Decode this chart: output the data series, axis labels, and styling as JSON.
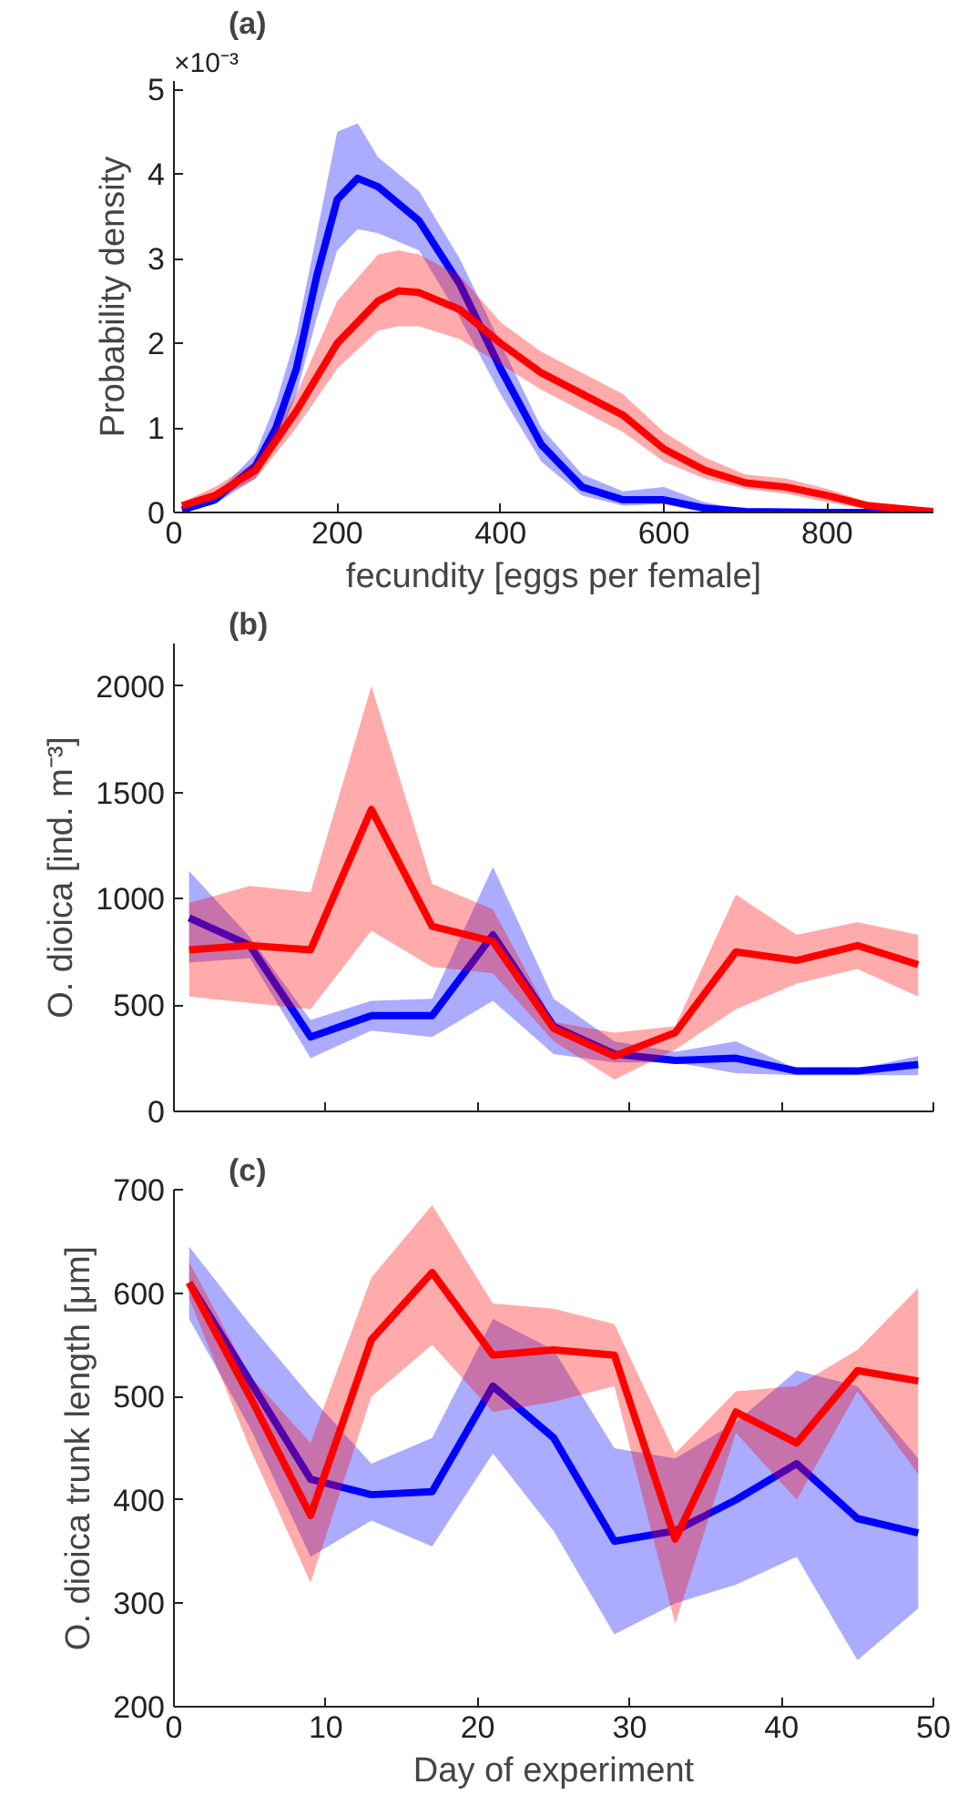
{
  "chart_data": [
    {
      "type": "line",
      "title": "(a)",
      "xlabel": "fecundity [eggs per female]",
      "ylabel": "Probability density",
      "annotations": [
        "×10⁻³"
      ],
      "xlim": [
        0,
        930
      ],
      "ylim": [
        0,
        5.1
      ],
      "xticks": [
        0,
        200,
        400,
        600,
        800
      ],
      "yticks": [
        0,
        1,
        2,
        3,
        4,
        5
      ],
      "grid": false,
      "series": [
        {
          "color": "#0000ff",
          "x": [
            10,
            50,
            100,
            125,
            150,
            175,
            200,
            225,
            250,
            300,
            350,
            400,
            450,
            500,
            550,
            600,
            650,
            700,
            800,
            930
          ],
          "values": [
            0.03,
            0.15,
            0.55,
            1.0,
            1.7,
            2.8,
            3.7,
            3.95,
            3.85,
            3.45,
            2.7,
            1.7,
            0.8,
            0.3,
            0.15,
            0.15,
            0.05,
            0.01,
            0,
            0
          ],
          "lower": [
            0,
            0.1,
            0.4,
            0.8,
            1.4,
            2.3,
            3.1,
            3.35,
            3.3,
            3.1,
            2.3,
            1.4,
            0.6,
            0.2,
            0.08,
            0.1,
            0,
            0,
            0,
            0
          ],
          "upper": [
            0.1,
            0.2,
            0.7,
            1.3,
            2.1,
            3.3,
            4.5,
            4.6,
            4.2,
            3.8,
            3.0,
            2.0,
            1.0,
            0.45,
            0.25,
            0.3,
            0.12,
            0.03,
            0.01,
            0
          ]
        },
        {
          "color": "#ff0000",
          "x": [
            10,
            50,
            100,
            150,
            200,
            250,
            275,
            300,
            350,
            400,
            450,
            500,
            550,
            600,
            650,
            700,
            750,
            800,
            850,
            930
          ],
          "values": [
            0.08,
            0.2,
            0.5,
            1.2,
            2.0,
            2.5,
            2.62,
            2.6,
            2.4,
            2.0,
            1.65,
            1.4,
            1.15,
            0.75,
            0.5,
            0.35,
            0.3,
            0.2,
            0.08,
            0.01
          ],
          "lower": [
            0.05,
            0.15,
            0.4,
            1.0,
            1.7,
            2.15,
            2.2,
            2.2,
            2.05,
            1.75,
            1.45,
            1.2,
            0.95,
            0.6,
            0.4,
            0.28,
            0.22,
            0.12,
            0.04,
            0
          ],
          "upper": [
            0.12,
            0.3,
            0.6,
            1.4,
            2.5,
            3.05,
            3.1,
            3.05,
            2.8,
            2.25,
            1.9,
            1.65,
            1.4,
            0.95,
            0.65,
            0.45,
            0.4,
            0.28,
            0.12,
            0.03
          ]
        }
      ]
    },
    {
      "type": "line",
      "title": "(b)",
      "ylabel": "O. dioica [ind. m⁻³]",
      "xlim": [
        0,
        50
      ],
      "ylim": [
        0,
        2200
      ],
      "xticks": [
        {
          "value": 10,
          "label": null
        },
        {
          "value": 20,
          "label": null
        },
        {
          "value": 30,
          "label": null
        },
        {
          "value": 40,
          "label": null
        },
        {
          "value": 50,
          "label": null
        }
      ],
      "yticks": [
        0,
        500,
        1000,
        1500,
        2000
      ],
      "tick_labels": "y",
      "grid": false,
      "x": [
        1,
        5,
        9,
        13,
        17,
        21,
        25,
        29,
        33,
        37,
        41,
        45,
        49
      ],
      "series": [
        {
          "color": "#0000ff",
          "values": [
            910,
            780,
            350,
            450,
            450,
            830,
            400,
            270,
            240,
            250,
            190,
            190,
            220
          ],
          "lower": [
            700,
            720,
            250,
            380,
            350,
            520,
            270,
            230,
            230,
            180,
            170,
            170,
            170
          ],
          "upper": [
            1130,
            820,
            430,
            520,
            530,
            1150,
            530,
            330,
            280,
            330,
            200,
            200,
            260
          ]
        },
        {
          "color": "#ff0000",
          "values": [
            760,
            780,
            760,
            1420,
            870,
            800,
            390,
            260,
            370,
            750,
            710,
            780,
            690
          ],
          "lower": [
            540,
            510,
            480,
            850,
            680,
            650,
            330,
            150,
            290,
            480,
            600,
            670,
            540
          ],
          "upper": [
            980,
            1060,
            1030,
            2000,
            1070,
            950,
            420,
            370,
            400,
            1020,
            830,
            890,
            830
          ]
        }
      ]
    },
    {
      "type": "line",
      "title": "(c)",
      "xlabel": "Day of experiment",
      "ylabel": "O. dioica trunk length [μm]",
      "xlim": [
        0,
        50
      ],
      "ylim": [
        200,
        700
      ],
      "xticks": [
        0,
        10,
        20,
        30,
        40,
        50
      ],
      "yticks": [
        200,
        300,
        400,
        500,
        600,
        700
      ],
      "grid": false,
      "x": [
        1,
        5,
        9,
        13,
        17,
        21,
        25,
        29,
        33,
        37,
        41,
        45,
        49
      ],
      "series": [
        {
          "color": "#0000ff",
          "values": [
            610,
            515,
            420,
            405,
            408,
            510,
            460,
            360,
            370,
            400,
            435,
            382,
            368
          ],
          "lower": [
            575,
            470,
            345,
            380,
            355,
            445,
            370,
            270,
            300,
            318,
            345,
            245,
            295
          ],
          "upper": [
            645,
            570,
            500,
            435,
            460,
            575,
            545,
            450,
            440,
            475,
            525,
            510,
            440
          ]
        },
        {
          "color": "#ff0000",
          "values": [
            610,
            500,
            385,
            555,
            620,
            540,
            545,
            540,
            362,
            485,
            455,
            525,
            515
          ],
          "lower": [
            595,
            450,
            320,
            500,
            550,
            485,
            495,
            510,
            280,
            465,
            400,
            505,
            425
          ],
          "upper": [
            630,
            520,
            455,
            615,
            685,
            590,
            585,
            570,
            445,
            505,
            510,
            545,
            605
          ]
        }
      ]
    }
  ]
}
